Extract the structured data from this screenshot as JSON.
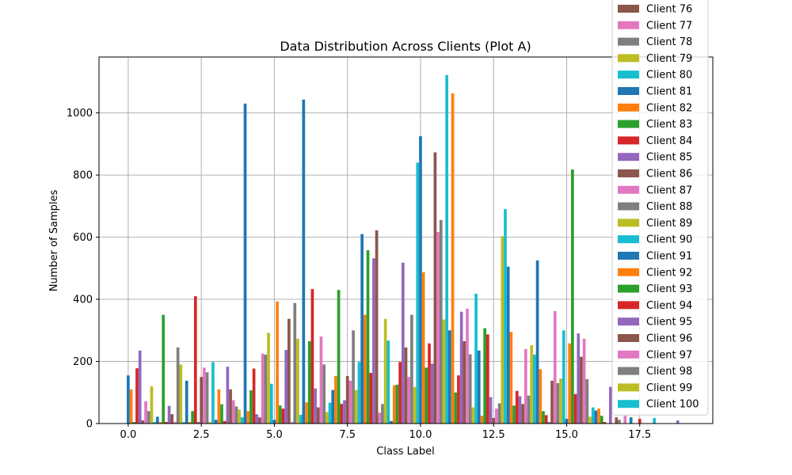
{
  "chart_data": {
    "type": "bar",
    "title": "Data Distribution Across Clients (Plot A)",
    "xlabel": "Class Label",
    "ylabel": "Number of Samples",
    "xlim": [
      -1,
      20
    ],
    "ylim": [
      0,
      1180
    ],
    "x_ticks": [
      0.0,
      2.5,
      5.0,
      7.5,
      10.0,
      12.5,
      15.0,
      17.5
    ],
    "x_tick_labels": [
      "0.0",
      "2.5",
      "5.0",
      "7.5",
      "10.0",
      "12.5",
      "15.0",
      "17.5"
    ],
    "y_ticks": [
      0,
      200,
      400,
      600,
      800,
      1000
    ],
    "y_tick_labels": [
      "0",
      "200",
      "400",
      "600",
      "800",
      "1000"
    ],
    "grid": true,
    "legend_position": "upper right",
    "bar_width": 0.1,
    "color_cycle": [
      "#1f77b4",
      "#ff7f0e",
      "#2ca02c",
      "#d62728",
      "#9467bd",
      "#8c564b",
      "#e377c2",
      "#7f7f7f",
      "#bcbd22",
      "#17becf"
    ],
    "legend": [
      {
        "name": "Client 76",
        "color": "#8c564b"
      },
      {
        "name": "Client 77",
        "color": "#e377c2"
      },
      {
        "name": "Client 78",
        "color": "#7f7f7f"
      },
      {
        "name": "Client 79",
        "color": "#bcbd22"
      },
      {
        "name": "Client 80",
        "color": "#17becf"
      },
      {
        "name": "Client 81",
        "color": "#1f77b4"
      },
      {
        "name": "Client 82",
        "color": "#ff7f0e"
      },
      {
        "name": "Client 83",
        "color": "#2ca02c"
      },
      {
        "name": "Client 84",
        "color": "#d62728"
      },
      {
        "name": "Client 85",
        "color": "#9467bd"
      },
      {
        "name": "Client 86",
        "color": "#8c564b"
      },
      {
        "name": "Client 87",
        "color": "#e377c2"
      },
      {
        "name": "Client 88",
        "color": "#7f7f7f"
      },
      {
        "name": "Client 89",
        "color": "#bcbd22"
      },
      {
        "name": "Client 90",
        "color": "#17becf"
      },
      {
        "name": "Client 91",
        "color": "#1f77b4"
      },
      {
        "name": "Client 92",
        "color": "#ff7f0e"
      },
      {
        "name": "Client 93",
        "color": "#2ca02c"
      },
      {
        "name": "Client 94",
        "color": "#d62728"
      },
      {
        "name": "Client 95",
        "color": "#9467bd"
      },
      {
        "name": "Client 96",
        "color": "#8c564b"
      },
      {
        "name": "Client 97",
        "color": "#e377c2"
      },
      {
        "name": "Client 98",
        "color": "#7f7f7f"
      },
      {
        "name": "Client 99",
        "color": "#bcbd22"
      },
      {
        "name": "Client 100",
        "color": "#17becf"
      }
    ],
    "bars": [
      {
        "x": 0.0,
        "value": 155,
        "color": "#1f77b4"
      },
      {
        "x": 0.1,
        "value": 110,
        "color": "#ff7f0e"
      },
      {
        "x": 0.2,
        "value": 5,
        "color": "#2ca02c"
      },
      {
        "x": 0.3,
        "value": 178,
        "color": "#d62728"
      },
      {
        "x": 0.4,
        "value": 235,
        "color": "#9467bd"
      },
      {
        "x": 0.5,
        "value": 10,
        "color": "#8c564b"
      },
      {
        "x": 0.6,
        "value": 72,
        "color": "#e377c2"
      },
      {
        "x": 0.7,
        "value": 40,
        "color": "#7f7f7f"
      },
      {
        "x": 0.8,
        "value": 120,
        "color": "#bcbd22"
      },
      {
        "x": 0.9,
        "value": 5,
        "color": "#17becf"
      },
      {
        "x": 1.0,
        "value": 22,
        "color": "#1f77b4"
      },
      {
        "x": 1.1,
        "value": 5,
        "color": "#ff7f0e"
      },
      {
        "x": 1.2,
        "value": 350,
        "color": "#2ca02c"
      },
      {
        "x": 1.3,
        "value": 5,
        "color": "#d62728"
      },
      {
        "x": 1.4,
        "value": 57,
        "color": "#9467bd"
      },
      {
        "x": 1.5,
        "value": 30,
        "color": "#8c564b"
      },
      {
        "x": 1.6,
        "value": 5,
        "color": "#e377c2"
      },
      {
        "x": 1.7,
        "value": 245,
        "color": "#7f7f7f"
      },
      {
        "x": 1.8,
        "value": 190,
        "color": "#bcbd22"
      },
      {
        "x": 1.9,
        "value": 5,
        "color": "#17becf"
      },
      {
        "x": 2.0,
        "value": 138,
        "color": "#1f77b4"
      },
      {
        "x": 2.1,
        "value": 5,
        "color": "#ff7f0e"
      },
      {
        "x": 2.2,
        "value": 40,
        "color": "#2ca02c"
      },
      {
        "x": 2.3,
        "value": 410,
        "color": "#d62728"
      },
      {
        "x": 2.4,
        "value": 5,
        "color": "#9467bd"
      },
      {
        "x": 2.5,
        "value": 150,
        "color": "#8c564b"
      },
      {
        "x": 2.6,
        "value": 180,
        "color": "#e377c2"
      },
      {
        "x": 2.7,
        "value": 165,
        "color": "#7f7f7f"
      },
      {
        "x": 2.8,
        "value": 5,
        "color": "#bcbd22"
      },
      {
        "x": 2.9,
        "value": 198,
        "color": "#17becf"
      },
      {
        "x": 3.0,
        "value": 12,
        "color": "#1f77b4"
      },
      {
        "x": 3.1,
        "value": 110,
        "color": "#ff7f0e"
      },
      {
        "x": 3.2,
        "value": 62,
        "color": "#2ca02c"
      },
      {
        "x": 3.3,
        "value": 8,
        "color": "#d62728"
      },
      {
        "x": 3.4,
        "value": 183,
        "color": "#9467bd"
      },
      {
        "x": 3.5,
        "value": 110,
        "color": "#8c564b"
      },
      {
        "x": 3.6,
        "value": 75,
        "color": "#e377c2"
      },
      {
        "x": 3.7,
        "value": 55,
        "color": "#7f7f7f"
      },
      {
        "x": 3.8,
        "value": 45,
        "color": "#bcbd22"
      },
      {
        "x": 3.9,
        "value": 20,
        "color": "#17becf"
      },
      {
        "x": 4.0,
        "value": 1030,
        "color": "#1f77b4"
      },
      {
        "x": 4.1,
        "value": 40,
        "color": "#ff7f0e"
      },
      {
        "x": 4.2,
        "value": 107,
        "color": "#2ca02c"
      },
      {
        "x": 4.3,
        "value": 177,
        "color": "#d62728"
      },
      {
        "x": 4.4,
        "value": 30,
        "color": "#9467bd"
      },
      {
        "x": 4.5,
        "value": 20,
        "color": "#8c564b"
      },
      {
        "x": 4.6,
        "value": 225,
        "color": "#e377c2"
      },
      {
        "x": 4.7,
        "value": 222,
        "color": "#7f7f7f"
      },
      {
        "x": 4.8,
        "value": 292,
        "color": "#bcbd22"
      },
      {
        "x": 4.9,
        "value": 128,
        "color": "#17becf"
      },
      {
        "x": 5.0,
        "value": 12,
        "color": "#1f77b4"
      },
      {
        "x": 5.1,
        "value": 393,
        "color": "#ff7f0e"
      },
      {
        "x": 5.2,
        "value": 58,
        "color": "#2ca02c"
      },
      {
        "x": 5.3,
        "value": 48,
        "color": "#d62728"
      },
      {
        "x": 5.4,
        "value": 237,
        "color": "#9467bd"
      },
      {
        "x": 5.5,
        "value": 337,
        "color": "#8c564b"
      },
      {
        "x": 5.6,
        "value": 5,
        "color": "#e377c2"
      },
      {
        "x": 5.7,
        "value": 388,
        "color": "#7f7f7f"
      },
      {
        "x": 5.8,
        "value": 273,
        "color": "#bcbd22"
      },
      {
        "x": 5.9,
        "value": 28,
        "color": "#17becf"
      },
      {
        "x": 6.0,
        "value": 1043,
        "color": "#1f77b4"
      },
      {
        "x": 6.1,
        "value": 68,
        "color": "#ff7f0e"
      },
      {
        "x": 6.2,
        "value": 265,
        "color": "#2ca02c"
      },
      {
        "x": 6.3,
        "value": 433,
        "color": "#d62728"
      },
      {
        "x": 6.4,
        "value": 113,
        "color": "#9467bd"
      },
      {
        "x": 6.5,
        "value": 52,
        "color": "#8c564b"
      },
      {
        "x": 6.6,
        "value": 280,
        "color": "#e377c2"
      },
      {
        "x": 6.7,
        "value": 190,
        "color": "#7f7f7f"
      },
      {
        "x": 6.8,
        "value": 37,
        "color": "#bcbd22"
      },
      {
        "x": 6.9,
        "value": 67,
        "color": "#17becf"
      },
      {
        "x": 7.0,
        "value": 108,
        "color": "#1f77b4"
      },
      {
        "x": 7.1,
        "value": 153,
        "color": "#ff7f0e"
      },
      {
        "x": 7.2,
        "value": 430,
        "color": "#2ca02c"
      },
      {
        "x": 7.3,
        "value": 63,
        "color": "#d62728"
      },
      {
        "x": 7.4,
        "value": 75,
        "color": "#9467bd"
      },
      {
        "x": 7.5,
        "value": 153,
        "color": "#8c564b"
      },
      {
        "x": 7.6,
        "value": 138,
        "color": "#e377c2"
      },
      {
        "x": 7.7,
        "value": 300,
        "color": "#7f7f7f"
      },
      {
        "x": 7.8,
        "value": 108,
        "color": "#bcbd22"
      },
      {
        "x": 7.9,
        "value": 198,
        "color": "#17becf"
      },
      {
        "x": 8.0,
        "value": 610,
        "color": "#1f77b4"
      },
      {
        "x": 8.1,
        "value": 350,
        "color": "#ff7f0e"
      },
      {
        "x": 8.2,
        "value": 558,
        "color": "#2ca02c"
      },
      {
        "x": 8.3,
        "value": 163,
        "color": "#d62728"
      },
      {
        "x": 8.4,
        "value": 532,
        "color": "#9467bd"
      },
      {
        "x": 8.5,
        "value": 622,
        "color": "#8c564b"
      },
      {
        "x": 8.6,
        "value": 35,
        "color": "#e377c2"
      },
      {
        "x": 8.7,
        "value": 63,
        "color": "#7f7f7f"
      },
      {
        "x": 8.8,
        "value": 337,
        "color": "#bcbd22"
      },
      {
        "x": 8.9,
        "value": 267,
        "color": "#17becf"
      },
      {
        "x": 9.0,
        "value": 8,
        "color": "#1f77b4"
      },
      {
        "x": 9.1,
        "value": 123,
        "color": "#ff7f0e"
      },
      {
        "x": 9.2,
        "value": 125,
        "color": "#2ca02c"
      },
      {
        "x": 9.3,
        "value": 198,
        "color": "#d62728"
      },
      {
        "x": 9.4,
        "value": 518,
        "color": "#9467bd"
      },
      {
        "x": 9.5,
        "value": 245,
        "color": "#8c564b"
      },
      {
        "x": 9.6,
        "value": 150,
        "color": "#e377c2"
      },
      {
        "x": 9.7,
        "value": 350,
        "color": "#7f7f7f"
      },
      {
        "x": 9.8,
        "value": 118,
        "color": "#bcbd22"
      },
      {
        "x": 9.9,
        "value": 840,
        "color": "#17becf"
      },
      {
        "x": 10.0,
        "value": 925,
        "color": "#1f77b4"
      },
      {
        "x": 10.1,
        "value": 487,
        "color": "#ff7f0e"
      },
      {
        "x": 10.2,
        "value": 180,
        "color": "#2ca02c"
      },
      {
        "x": 10.3,
        "value": 258,
        "color": "#d62728"
      },
      {
        "x": 10.4,
        "value": 193,
        "color": "#9467bd"
      },
      {
        "x": 10.5,
        "value": 873,
        "color": "#8c564b"
      },
      {
        "x": 10.6,
        "value": 617,
        "color": "#e377c2"
      },
      {
        "x": 10.7,
        "value": 655,
        "color": "#7f7f7f"
      },
      {
        "x": 10.8,
        "value": 335,
        "color": "#bcbd22"
      },
      {
        "x": 10.9,
        "value": 1122,
        "color": "#17becf"
      },
      {
        "x": 11.0,
        "value": 300,
        "color": "#1f77b4"
      },
      {
        "x": 11.1,
        "value": 1063,
        "color": "#ff7f0e"
      },
      {
        "x": 11.2,
        "value": 100,
        "color": "#2ca02c"
      },
      {
        "x": 11.3,
        "value": 155,
        "color": "#d62728"
      },
      {
        "x": 11.4,
        "value": 360,
        "color": "#9467bd"
      },
      {
        "x": 11.5,
        "value": 265,
        "color": "#8c564b"
      },
      {
        "x": 11.6,
        "value": 370,
        "color": "#e377c2"
      },
      {
        "x": 11.7,
        "value": 223,
        "color": "#7f7f7f"
      },
      {
        "x": 11.8,
        "value": 52,
        "color": "#bcbd22"
      },
      {
        "x": 11.9,
        "value": 418,
        "color": "#17becf"
      },
      {
        "x": 12.0,
        "value": 235,
        "color": "#1f77b4"
      },
      {
        "x": 12.1,
        "value": 25,
        "color": "#ff7f0e"
      },
      {
        "x": 12.2,
        "value": 307,
        "color": "#2ca02c"
      },
      {
        "x": 12.3,
        "value": 287,
        "color": "#d62728"
      },
      {
        "x": 12.4,
        "value": 85,
        "color": "#9467bd"
      },
      {
        "x": 12.5,
        "value": 18,
        "color": "#8c564b"
      },
      {
        "x": 12.6,
        "value": 48,
        "color": "#e377c2"
      },
      {
        "x": 12.7,
        "value": 65,
        "color": "#7f7f7f"
      },
      {
        "x": 12.8,
        "value": 603,
        "color": "#bcbd22"
      },
      {
        "x": 12.9,
        "value": 690,
        "color": "#17becf"
      },
      {
        "x": 13.0,
        "value": 505,
        "color": "#1f77b4"
      },
      {
        "x": 13.1,
        "value": 295,
        "color": "#ff7f0e"
      },
      {
        "x": 13.2,
        "value": 58,
        "color": "#2ca02c"
      },
      {
        "x": 13.3,
        "value": 105,
        "color": "#d62728"
      },
      {
        "x": 13.4,
        "value": 88,
        "color": "#9467bd"
      },
      {
        "x": 13.5,
        "value": 63,
        "color": "#8c564b"
      },
      {
        "x": 13.6,
        "value": 240,
        "color": "#e377c2"
      },
      {
        "x": 13.7,
        "value": 90,
        "color": "#7f7f7f"
      },
      {
        "x": 13.8,
        "value": 252,
        "color": "#bcbd22"
      },
      {
        "x": 13.9,
        "value": 222,
        "color": "#17becf"
      },
      {
        "x": 14.0,
        "value": 525,
        "color": "#1f77b4"
      },
      {
        "x": 14.1,
        "value": 175,
        "color": "#ff7f0e"
      },
      {
        "x": 14.2,
        "value": 40,
        "color": "#2ca02c"
      },
      {
        "x": 14.3,
        "value": 27,
        "color": "#d62728"
      },
      {
        "x": 14.4,
        "value": 5,
        "color": "#9467bd"
      },
      {
        "x": 14.5,
        "value": 138,
        "color": "#8c564b"
      },
      {
        "x": 14.6,
        "value": 362,
        "color": "#e377c2"
      },
      {
        "x": 14.7,
        "value": 130,
        "color": "#7f7f7f"
      },
      {
        "x": 14.8,
        "value": 145,
        "color": "#bcbd22"
      },
      {
        "x": 14.9,
        "value": 300,
        "color": "#17becf"
      },
      {
        "x": 15.0,
        "value": 15,
        "color": "#1f77b4"
      },
      {
        "x": 15.1,
        "value": 258,
        "color": "#ff7f0e"
      },
      {
        "x": 15.2,
        "value": 818,
        "color": "#2ca02c"
      },
      {
        "x": 15.3,
        "value": 95,
        "color": "#d62728"
      },
      {
        "x": 15.4,
        "value": 290,
        "color": "#9467bd"
      },
      {
        "x": 15.5,
        "value": 215,
        "color": "#8c564b"
      },
      {
        "x": 15.6,
        "value": 273,
        "color": "#e377c2"
      },
      {
        "x": 15.7,
        "value": 143,
        "color": "#7f7f7f"
      },
      {
        "x": 15.8,
        "value": 22,
        "color": "#bcbd22"
      },
      {
        "x": 15.9,
        "value": 52,
        "color": "#17becf"
      },
      {
        "x": 16.0,
        "value": 42,
        "color": "#1f77b4"
      },
      {
        "x": 16.1,
        "value": 48,
        "color": "#ff7f0e"
      },
      {
        "x": 16.2,
        "value": 25,
        "color": "#2ca02c"
      },
      {
        "x": 16.3,
        "value": 5,
        "color": "#d62728"
      },
      {
        "x": 16.5,
        "value": 118,
        "color": "#9467bd"
      },
      {
        "x": 16.7,
        "value": 20,
        "color": "#8c564b"
      },
      {
        "x": 16.8,
        "value": 12,
        "color": "#7f7f7f"
      },
      {
        "x": 17.0,
        "value": 25,
        "color": "#e377c2"
      },
      {
        "x": 17.2,
        "value": 20,
        "color": "#1f77b4"
      },
      {
        "x": 17.5,
        "value": 15,
        "color": "#d62728"
      },
      {
        "x": 18.0,
        "value": 18,
        "color": "#17becf"
      },
      {
        "x": 18.8,
        "value": 10,
        "color": "#9467bd"
      }
    ]
  }
}
